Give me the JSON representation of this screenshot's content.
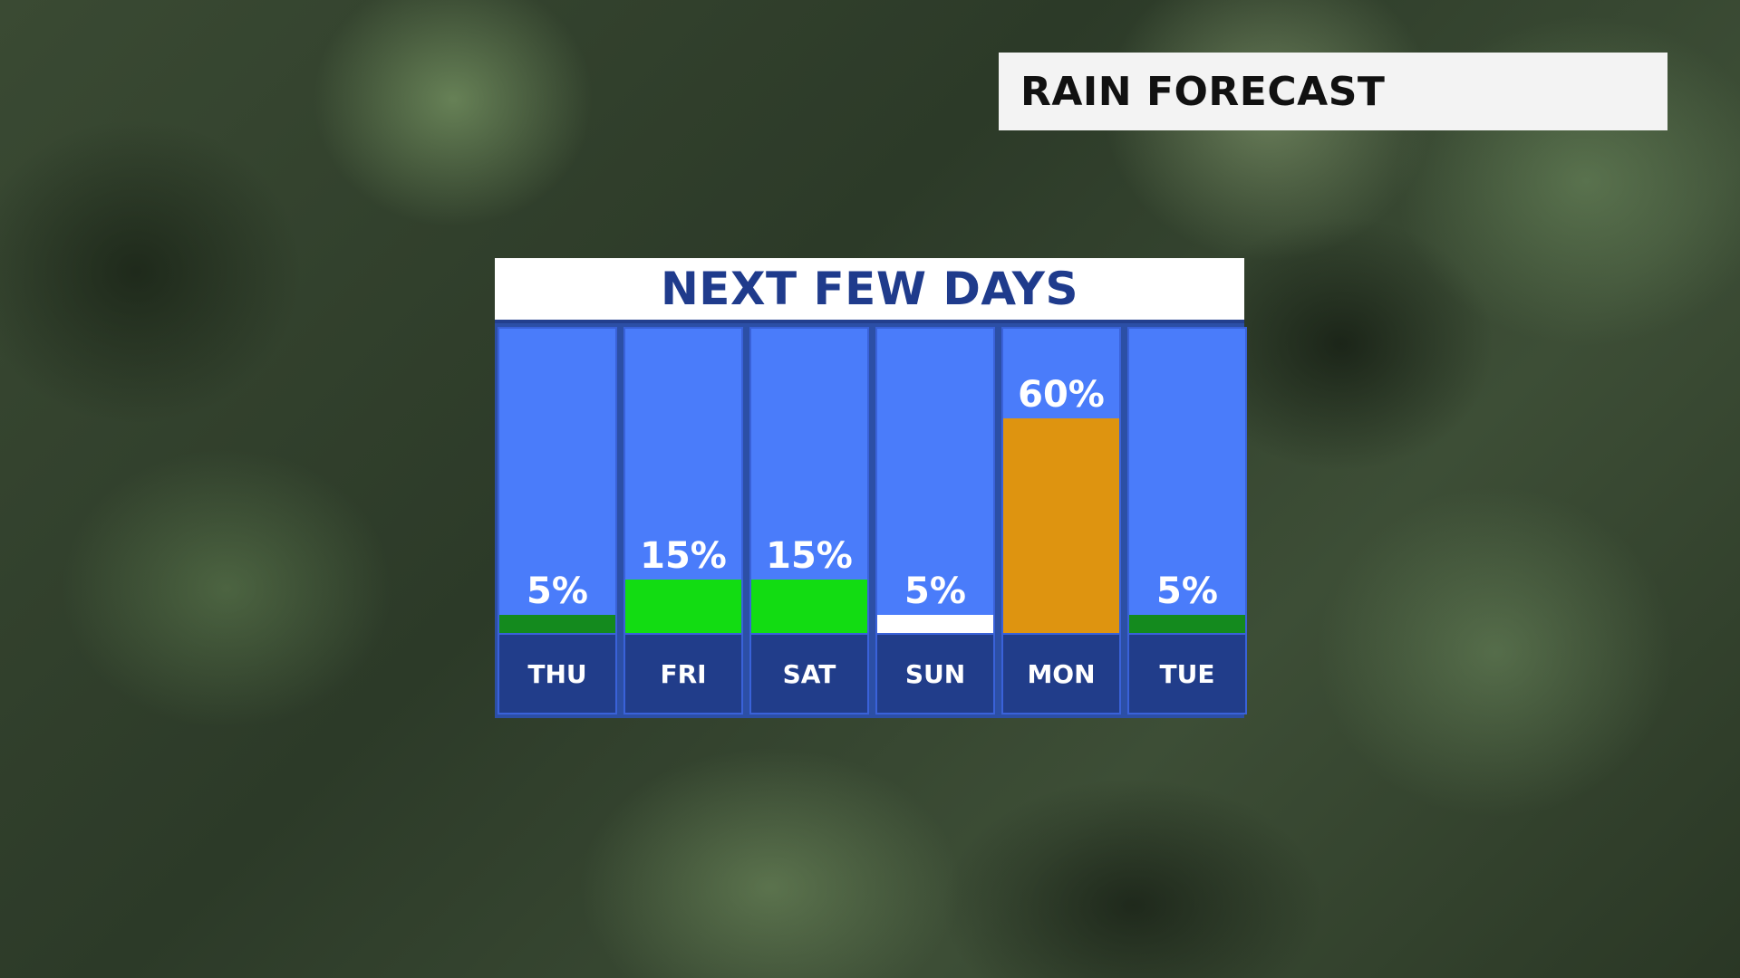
{
  "header": {
    "title": "RAIN FORECAST"
  },
  "chart_data": {
    "type": "bar",
    "title": "NEXT FEW DAYS",
    "categories": [
      "THU",
      "FRI",
      "SAT",
      "SUN",
      "MON",
      "TUE"
    ],
    "values": [
      5,
      15,
      15,
      5,
      60,
      5
    ],
    "value_labels": [
      "5%",
      "15%",
      "15%",
      "5%",
      "60%",
      "5%"
    ],
    "bar_colors": [
      "#148a1e",
      "#12dc12",
      "#12dc12",
      "#ffffff",
      "#de9410",
      "#148a1e"
    ],
    "ylim": [
      0,
      100
    ],
    "grid": false,
    "legend": "none"
  },
  "colors": {
    "column_background": "#4a7cfa",
    "day_label_background": "#213d8a",
    "title_text": "#1f3b8c",
    "header_background": "#f3f3f3"
  }
}
